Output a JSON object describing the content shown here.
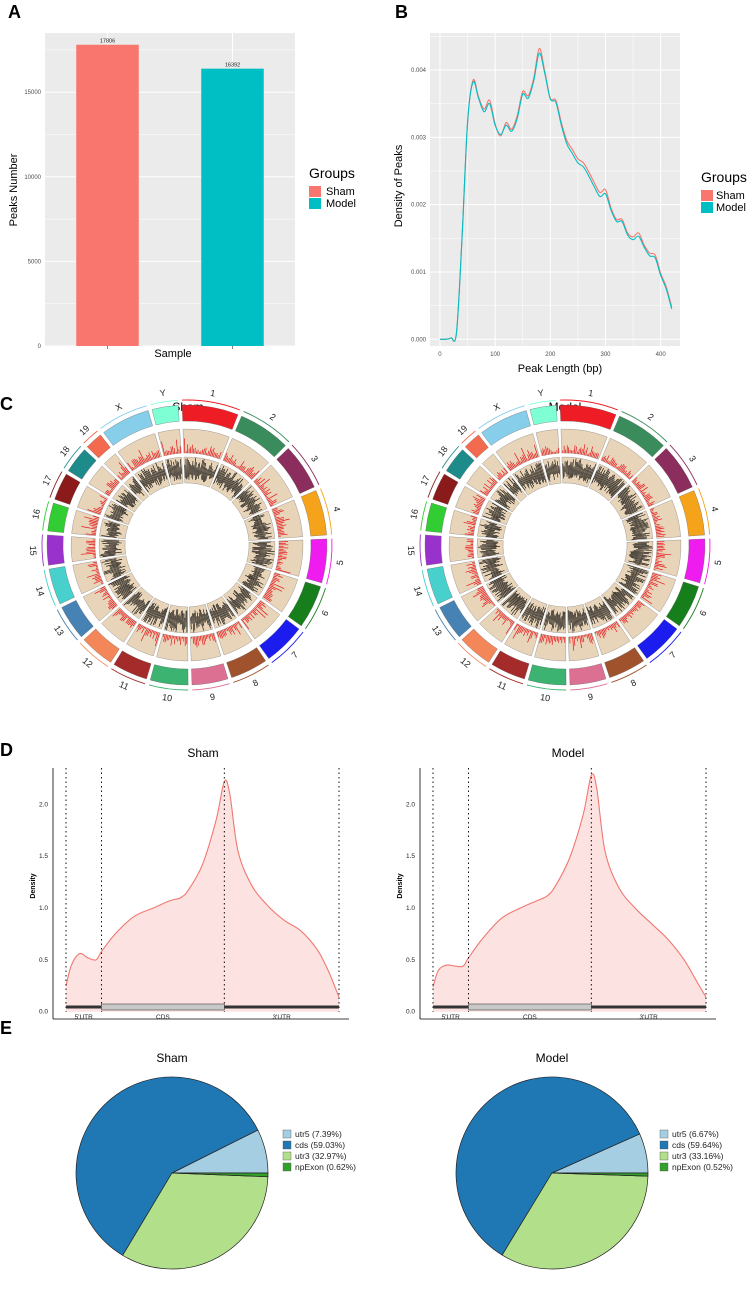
{
  "figure": {
    "panel_labels": [
      "A",
      "B",
      "C",
      "D",
      "E"
    ],
    "colors": {
      "sham": "#F8766D",
      "model": "#00BFC4",
      "panel_bg": "#EBEBEB",
      "grid": "#FFFFFF",
      "density_line": "#F07870",
      "density_fill": "#FCE2E0",
      "pie_utr5": "#A6CEE3",
      "pie_cds": "#1F78B4",
      "pie_utr3": "#B2DF8A",
      "pie_npexon": "#33A02C",
      "track_bg": "#E8D4B8",
      "signal_red": "#E8141C",
      "signal_black": "#000000"
    }
  },
  "chart_data": [
    {
      "panel": "A",
      "type": "bar",
      "categories": [
        "Sham",
        "Model"
      ],
      "values": [
        17806,
        16392
      ],
      "value_labels": [
        "17806",
        "16392"
      ],
      "xlabel": "Sample",
      "ylabel": "Peaks Number",
      "ylim": [
        0,
        18500
      ],
      "yticks": [
        0,
        5000,
        10000,
        15000
      ],
      "ytick_labels": [
        "0",
        "5000",
        "10000",
        "15000"
      ],
      "legend": {
        "title": "Groups",
        "entries": [
          "Sham",
          "Model"
        ],
        "position": "right"
      }
    },
    {
      "panel": "B",
      "type": "line",
      "xlabel": "Peak Length (bp)",
      "ylabel": "Density of Peaks",
      "xlim": [
        -18,
        435
      ],
      "ylim": [
        -0.0001,
        0.00455
      ],
      "xticks": [
        0,
        100,
        200,
        300,
        400
      ],
      "xtick_labels": [
        "0",
        "100",
        "200",
        "300",
        "400"
      ],
      "yticks": [
        0,
        0.001,
        0.002,
        0.003,
        0.004
      ],
      "ytick_labels": [
        "0.000",
        "0.001",
        "0.002",
        "0.003",
        "0.004"
      ],
      "legend": {
        "title": "Groups",
        "entries": [
          "Sham",
          "Model"
        ],
        "position": "right"
      },
      "series": [
        {
          "name": "Sham",
          "x": [
            0,
            10,
            20,
            30,
            40,
            50,
            60,
            70,
            80,
            90,
            100,
            110,
            120,
            130,
            140,
            150,
            160,
            170,
            180,
            190,
            200,
            210,
            220,
            230,
            240,
            250,
            260,
            270,
            280,
            290,
            300,
            310,
            320,
            330,
            340,
            350,
            360,
            370,
            380,
            390,
            400,
            410,
            420
          ],
          "values": [
            0,
            0,
            2e-05,
            0.0001,
            0.0015,
            0.0032,
            0.00385,
            0.0036,
            0.00342,
            0.00355,
            0.0032,
            0.00302,
            0.00322,
            0.00312,
            0.00332,
            0.00368,
            0.00362,
            0.00388,
            0.00432,
            0.00398,
            0.00358,
            0.00355,
            0.00322,
            0.00295,
            0.00282,
            0.00268,
            0.00262,
            0.00248,
            0.00232,
            0.00218,
            0.00222,
            0.00195,
            0.00178,
            0.00178,
            0.00158,
            0.00152,
            0.00158,
            0.0014,
            0.00128,
            0.00125,
            0.00098,
            0.00078,
            0.00048
          ]
        },
        {
          "name": "Model",
          "x": [
            0,
            10,
            20,
            30,
            40,
            50,
            60,
            70,
            80,
            90,
            100,
            110,
            120,
            130,
            140,
            150,
            160,
            170,
            180,
            190,
            200,
            210,
            220,
            230,
            240,
            250,
            260,
            270,
            280,
            290,
            300,
            310,
            320,
            330,
            340,
            350,
            360,
            370,
            380,
            390,
            400,
            410,
            420
          ],
          "values": [
            0,
            0,
            2e-05,
            0.0001,
            0.0015,
            0.00322,
            0.00382,
            0.00358,
            0.00338,
            0.0035,
            0.00318,
            0.00304,
            0.00318,
            0.00309,
            0.00328,
            0.00364,
            0.00358,
            0.00384,
            0.00425,
            0.00395,
            0.00357,
            0.00352,
            0.00318,
            0.0029,
            0.00276,
            0.00262,
            0.00256,
            0.00242,
            0.00226,
            0.00212,
            0.00216,
            0.00192,
            0.00175,
            0.00175,
            0.00155,
            0.00148,
            0.00153,
            0.00137,
            0.00124,
            0.00121,
            0.00095,
            0.00075,
            0.00045
          ]
        }
      ]
    },
    {
      "panel": "C",
      "type": "circos",
      "plots": [
        {
          "title": "Sham"
        },
        {
          "title": "Model"
        }
      ],
      "chromosomes": [
        "1",
        "2",
        "3",
        "4",
        "5",
        "6",
        "7",
        "8",
        "9",
        "10",
        "11",
        "12",
        "13",
        "14",
        "15",
        "16",
        "17",
        "18",
        "19",
        "X",
        "Y"
      ],
      "chromosome_lengths_mb": [
        195,
        182,
        160,
        157,
        152,
        150,
        145,
        130,
        125,
        131,
        122,
        120,
        121,
        125,
        104,
        98,
        95,
        91,
        61,
        171,
        91
      ],
      "chromosome_colors": [
        "#EE1C24",
        "#3A8C5C",
        "#8B2D5D",
        "#F5A31A",
        "#EE1CEE",
        "#177E1C",
        "#1C1CEE",
        "#A0522D",
        "#DB7093",
        "#3CB371",
        "#A52A2A",
        "#F4875A",
        "#4682B4",
        "#48D1CC",
        "#9932CC",
        "#32CD32",
        "#8B1A1A",
        "#1E8B8B",
        "#F46A4E",
        "#87CEEB",
        "#7FFFD4"
      ],
      "tracks": [
        "peak signal (red)",
        "peak signal (black)"
      ]
    },
    {
      "panel": "D",
      "type": "area",
      "ylabel": "Density",
      "regions": [
        "5'UTR",
        "CDS",
        "3'UTR"
      ],
      "region_bounds": [
        0,
        0.13,
        0.58,
        1.0
      ],
      "yticks": [
        0,
        0.5,
        1.0,
        1.5,
        2.0
      ],
      "ytick_labels": [
        "0.0",
        "0.5",
        "1.0",
        "1.5",
        "2.0"
      ],
      "ylim": [
        -0.07,
        2.35
      ],
      "plots": [
        {
          "title": "Sham",
          "x": [
            0,
            0.02,
            0.05,
            0.08,
            0.11,
            0.13,
            0.18,
            0.25,
            0.32,
            0.38,
            0.42,
            0.45,
            0.5,
            0.55,
            0.58,
            0.6,
            0.63,
            0.68,
            0.74,
            0.8,
            0.86,
            0.92,
            0.96,
            1.0
          ],
          "values": [
            0.25,
            0.45,
            0.56,
            0.52,
            0.5,
            0.58,
            0.75,
            0.92,
            1.0,
            1.07,
            1.1,
            1.18,
            1.42,
            1.85,
            2.22,
            2.1,
            1.55,
            1.22,
            1.02,
            0.88,
            0.78,
            0.6,
            0.4,
            0.14
          ]
        },
        {
          "title": "Model",
          "x": [
            0,
            0.02,
            0.05,
            0.08,
            0.11,
            0.13,
            0.18,
            0.25,
            0.32,
            0.38,
            0.42,
            0.45,
            0.5,
            0.55,
            0.58,
            0.6,
            0.63,
            0.68,
            0.74,
            0.8,
            0.86,
            0.92,
            0.96,
            1.0
          ],
          "values": [
            0.24,
            0.4,
            0.45,
            0.44,
            0.44,
            0.52,
            0.7,
            0.9,
            1.0,
            1.07,
            1.12,
            1.22,
            1.48,
            1.9,
            2.28,
            2.15,
            1.55,
            1.2,
            1.0,
            0.85,
            0.7,
            0.5,
            0.32,
            0.14
          ]
        }
      ]
    },
    {
      "panel": "E",
      "type": "pie",
      "categories": [
        "utr5",
        "cds",
        "utr3",
        "npExon"
      ],
      "plots": [
        {
          "title": "Sham",
          "values": [
            7.39,
            59.03,
            32.97,
            0.62
          ],
          "legend_labels": [
            "utr5 (7.39%)",
            "cds (59.03%)",
            "utr3 (32.97%)",
            "npExon (0.62%)"
          ]
        },
        {
          "title": "Model",
          "values": [
            6.67,
            59.64,
            33.16,
            0.52
          ],
          "legend_labels": [
            "utr5 (6.67%)",
            "cds (59.64%)",
            "utr3 (33.16%)",
            "npExon (0.52%)"
          ]
        }
      ]
    }
  ]
}
